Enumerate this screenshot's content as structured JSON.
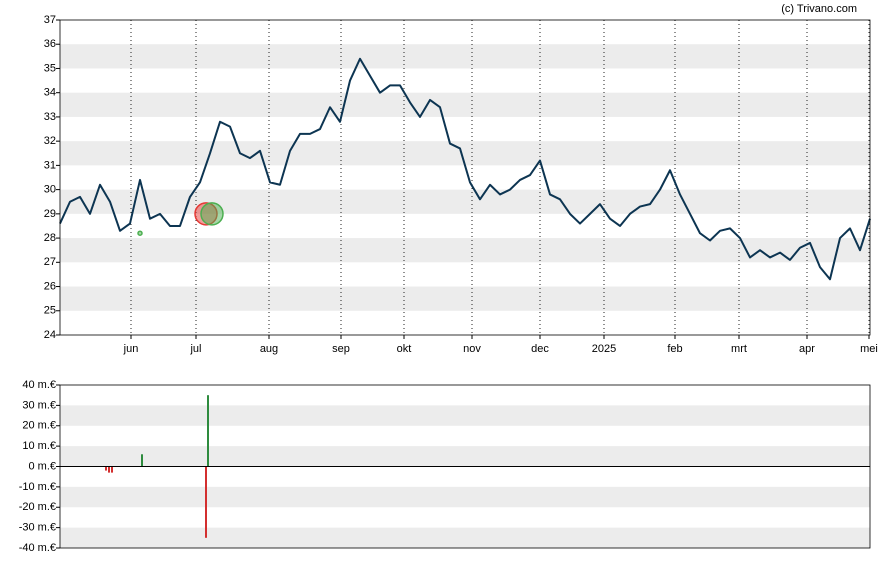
{
  "credit": "(c) Trivano.com",
  "chart_data": [
    {
      "type": "line",
      "xlim": [
        0,
        81
      ],
      "xticks": [
        {
          "value": 7.1,
          "label": "jun"
        },
        {
          "value": 13.6,
          "label": "jul"
        },
        {
          "value": 20.9,
          "label": "aug"
        },
        {
          "value": 28.1,
          "label": "sep"
        },
        {
          "value": 34.4,
          "label": "okt"
        },
        {
          "value": 41.2,
          "label": "nov"
        },
        {
          "value": 48,
          "label": "dec"
        },
        {
          "value": 54.4,
          "label": "2025"
        },
        {
          "value": 61.5,
          "label": "feb"
        },
        {
          "value": 67.9,
          "label": "mrt"
        },
        {
          "value": 74.7,
          "label": "apr"
        },
        {
          "value": 80.9,
          "label": "mei"
        }
      ],
      "ylim": [
        24,
        37
      ],
      "yticks": [
        24,
        25,
        26,
        27,
        28,
        29,
        30,
        31,
        32,
        33,
        34,
        35,
        36,
        37
      ],
      "grid": true,
      "color": "#0d3552",
      "values": [
        28.6,
        29.5,
        29.7,
        29.0,
        30.2,
        29.5,
        28.3,
        28.6,
        30.4,
        28.8,
        29.0,
        28.5,
        28.5,
        29.7,
        30.3,
        31.5,
        32.8,
        32.6,
        31.5,
        31.3,
        31.6,
        30.3,
        30.2,
        31.6,
        32.3,
        32.3,
        32.5,
        33.4,
        32.8,
        34.5,
        35.4,
        34.7,
        34.0,
        34.3,
        34.3,
        33.6,
        33.0,
        33.7,
        33.4,
        31.9,
        31.7,
        30.3,
        29.6,
        30.2,
        29.8,
        30.0,
        30.4,
        30.6,
        31.2,
        29.8,
        29.6,
        29.0,
        28.6,
        29.0,
        29.4,
        28.8,
        28.5,
        29.0,
        29.3,
        29.4,
        30.0,
        30.8,
        29.8,
        29.0,
        28.2,
        27.9,
        28.3,
        28.4,
        28.0,
        27.2,
        27.5,
        27.2,
        27.4,
        27.1,
        27.6,
        27.8,
        26.8,
        26.3,
        28.0,
        28.4,
        27.5,
        28.8
      ],
      "markers": [
        {
          "x": 8.0,
          "y": 28.2,
          "size": 2,
          "color": "#4caf50"
        },
        {
          "x": 14.6,
          "y": 29.0,
          "size": 11,
          "color": "#e53935"
        },
        {
          "x": 15.2,
          "y": 29.0,
          "size": 11,
          "color": "#4caf50"
        }
      ]
    },
    {
      "type": "bar",
      "xlim": [
        0,
        81
      ],
      "ylim": [
        -40,
        40
      ],
      "yticks": [
        {
          "value": -40,
          "label": "-40 m.€"
        },
        {
          "value": -30,
          "label": "-30 m.€"
        },
        {
          "value": -20,
          "label": "-20 m.€"
        },
        {
          "value": -10,
          "label": "-10 m.€"
        },
        {
          "value": 0,
          "label": "0 m.€"
        },
        {
          "value": 10,
          "label": "10 m.€"
        },
        {
          "value": 20,
          "label": "20 m.€"
        },
        {
          "value": 30,
          "label": "30 m.€"
        },
        {
          "value": 40,
          "label": "40 m.€"
        }
      ],
      "grid": true,
      "series": [
        {
          "color": "#2e8b3e",
          "x": [
            8.2,
            14.8
          ],
          "values": [
            6,
            35
          ]
        },
        {
          "color": "#d32f2f",
          "x": [
            4.6,
            4.9,
            5.2,
            14.6
          ],
          "values": [
            -2,
            -3,
            -3,
            -35
          ]
        }
      ]
    }
  ]
}
